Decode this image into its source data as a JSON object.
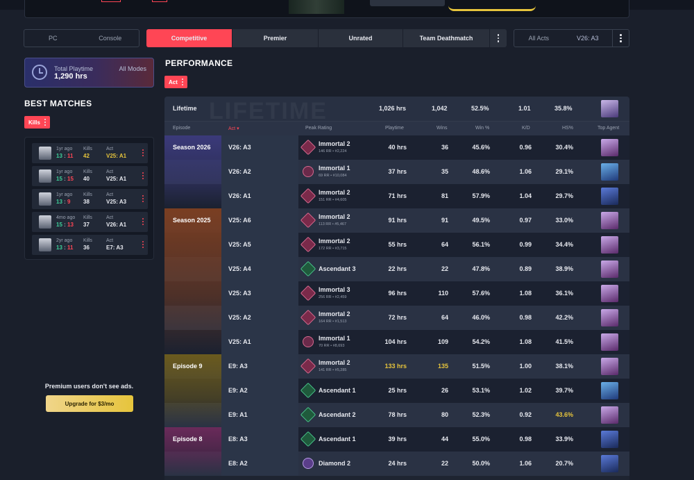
{
  "platform": {
    "options": [
      "PC",
      "Console"
    ]
  },
  "modes": {
    "items": [
      "Competitive",
      "Premier",
      "Unrated",
      "Team Deathmatch"
    ],
    "active": "Competitive"
  },
  "acts_filter": {
    "all": "All Acts",
    "selected": "V26: A3"
  },
  "playtime": {
    "label": "Total Playtime",
    "value": "1,290 hrs",
    "modes": "All Modes"
  },
  "best_matches": {
    "title": "BEST MATCHES",
    "sort_chip": "Kills",
    "kills_label": "Kills",
    "act_label": "Act",
    "items": [
      {
        "ago": "1yr ago",
        "won": "13",
        "lost": "11",
        "kills": "42",
        "act": "V25: A1",
        "highlight": true
      },
      {
        "ago": "1yr ago",
        "won": "15",
        "lost": "15",
        "kills": "40",
        "act": "V25: A1",
        "highlight": false
      },
      {
        "ago": "1yr ago",
        "won": "13",
        "lost": "9",
        "kills": "38",
        "act": "V25: A3",
        "highlight": false
      },
      {
        "ago": "4mo ago",
        "won": "15",
        "lost": "13",
        "kills": "37",
        "act": "V26: A1",
        "highlight": false
      },
      {
        "ago": "2yr ago",
        "won": "13",
        "lost": "11",
        "kills": "36",
        "act": "E7: A3",
        "highlight": false
      }
    ]
  },
  "ads": {
    "text": "Premium users don't see ads.",
    "upgrade": "Upgrade for $3/mo"
  },
  "performance": {
    "title": "PERFORMANCE",
    "chip": "Act",
    "lifetime": {
      "label": "Lifetime",
      "playtime": "1,026 hrs",
      "wins": "1,042",
      "winpct": "52.5%",
      "kd": "1.01",
      "hs": "35.8%"
    },
    "headers": {
      "episode": "Episode",
      "act": "Act",
      "peak": "Peak Rating",
      "playtime": "Playtime",
      "wins": "Wins",
      "winpct": "Win %",
      "kd": "K/D",
      "hs": "HS%",
      "agent": "Top Agent"
    },
    "rows": [
      {
        "act": "V26: A3",
        "rank": "Immortal 2",
        "sub": "146 RR • #2,224",
        "icon": "imm",
        "playtime": "40 hrs",
        "wins": "36",
        "winpct": "45.6%",
        "kd": "0.96",
        "hs": "30.4%"
      },
      {
        "act": "V26: A2",
        "rank": "Immortal 1",
        "sub": "69 RR • #10,084",
        "icon": "imm1",
        "playtime": "37 hrs",
        "wins": "35",
        "winpct": "48.6%",
        "kd": "1.06",
        "hs": "29.1%"
      },
      {
        "act": "V26: A1",
        "rank": "Immortal 2",
        "sub": "151 RR • #4,605",
        "icon": "imm",
        "playtime": "71 hrs",
        "wins": "81",
        "winpct": "57.9%",
        "kd": "1.04",
        "hs": "29.7%"
      },
      {
        "act": "V25: A6",
        "rank": "Immortal 2",
        "sub": "113 RR • #5,467",
        "icon": "imm",
        "playtime": "91 hrs",
        "wins": "91",
        "winpct": "49.5%",
        "kd": "0.97",
        "hs": "33.0%"
      },
      {
        "act": "V25: A5",
        "rank": "Immortal 2",
        "sub": "172 RR • #3,715",
        "icon": "imm",
        "playtime": "55 hrs",
        "wins": "64",
        "winpct": "56.1%",
        "kd": "0.99",
        "hs": "34.4%"
      },
      {
        "act": "V25: A4",
        "rank": "Ascendant 3",
        "sub": "",
        "icon": "asc",
        "playtime": "22 hrs",
        "wins": "22",
        "winpct": "47.8%",
        "kd": "0.89",
        "hs": "38.9%"
      },
      {
        "act": "V25: A3",
        "rank": "Immortal 3",
        "sub": "256 RR • #2,459",
        "icon": "imm",
        "playtime": "96 hrs",
        "wins": "110",
        "winpct": "57.6%",
        "kd": "1.08",
        "hs": "36.1%"
      },
      {
        "act": "V25: A2",
        "rank": "Immortal 2",
        "sub": "164 RR • #1,513",
        "icon": "imm",
        "playtime": "72 hrs",
        "wins": "64",
        "winpct": "46.0%",
        "kd": "0.98",
        "hs": "42.2%"
      },
      {
        "act": "V25: A1",
        "rank": "Immortal 1",
        "sub": "70 RR • #8,693",
        "icon": "imm1",
        "playtime": "104 hrs",
        "wins": "109",
        "winpct": "54.2%",
        "kd": "1.08",
        "hs": "41.5%"
      },
      {
        "act": "E9: A3",
        "rank": "Immortal 2",
        "sub": "141 RR • #5,285",
        "icon": "imm",
        "playtime": "133 hrs",
        "wins": "135",
        "winpct": "51.5%",
        "kd": "1.00",
        "hs": "38.1%"
      },
      {
        "act": "E9: A2",
        "rank": "Ascendant 1",
        "sub": "",
        "icon": "asc",
        "playtime": "25 hrs",
        "wins": "26",
        "winpct": "53.1%",
        "kd": "1.02",
        "hs": "39.7%"
      },
      {
        "act": "E9: A1",
        "rank": "Ascendant 2",
        "sub": "",
        "icon": "asc",
        "playtime": "78 hrs",
        "wins": "80",
        "winpct": "52.3%",
        "kd": "0.92",
        "hs": "43.6%"
      },
      {
        "act": "E8: A3",
        "rank": "Ascendant 1",
        "sub": "",
        "icon": "asc",
        "playtime": "39 hrs",
        "wins": "44",
        "winpct": "55.0%",
        "kd": "0.98",
        "hs": "33.9%"
      },
      {
        "act": "E8: A2",
        "rank": "Diamond 2",
        "sub": "",
        "icon": "dia",
        "playtime": "24 hrs",
        "wins": "22",
        "winpct": "50.0%",
        "kd": "1.06",
        "hs": "20.7%"
      }
    ],
    "episodes": [
      {
        "label": "Season 2026",
        "color": "#3b3a7a"
      },
      {
        "label": "Season 2025",
        "color": "#7a3e22"
      },
      {
        "label": "Episode 9",
        "color": "#6a5a1e"
      },
      {
        "label": "Episode 8",
        "color": "#6a2a5a"
      }
    ]
  },
  "colors": {
    "accent": "#ff4655",
    "gold": "#e6c43c",
    "win": "#3ed09a"
  }
}
